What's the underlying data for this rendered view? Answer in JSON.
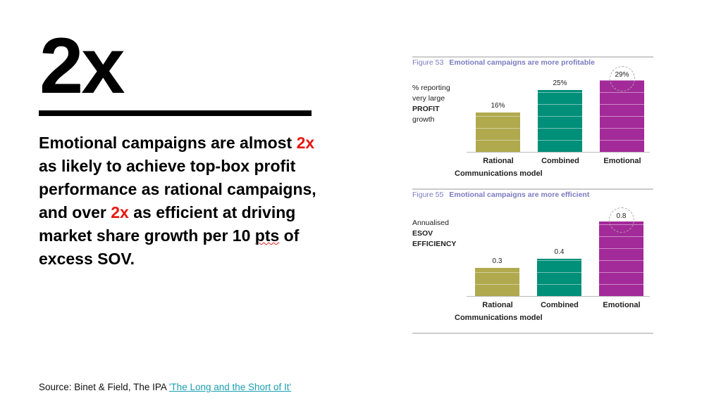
{
  "headline": "2x",
  "paragraph": {
    "p1": "Emotional campaigns are almost ",
    "r1": "2x",
    "p2": " as likely to achieve top-box profit performance as rational campaigns, and over ",
    "r2": "2x",
    "p3": " as efficient at driving market share growth per 10 ",
    "p4": "pts",
    "p5": " of excess SOV."
  },
  "source": {
    "text": "Source: Binet & Field, The IPA ",
    "link": "'The Long and the Short of It'"
  },
  "colors": {
    "rational": "#b0a94e",
    "combined": "#008f78",
    "emotional": "#a32a99",
    "accent": "#e8170f"
  },
  "chart_data": [
    {
      "type": "bar",
      "figure": "Figure 53",
      "title": "Emotional campaigns are more profitable",
      "ylabel": [
        "% reporting",
        "very large",
        "PROFIT",
        "growth"
      ],
      "xlabel": "Communications model",
      "categories": [
        "Rational",
        "Combined",
        "Emotional"
      ],
      "values": [
        16,
        25,
        29
      ],
      "value_labels": [
        "16%",
        "25%",
        "29%"
      ],
      "ylim": [
        0,
        29
      ]
    },
    {
      "type": "bar",
      "figure": "Figure 55",
      "title": "Emotional campaigns are more efficient",
      "ylabel": [
        "Annualised",
        "ESOV",
        "EFFICIENCY"
      ],
      "xlabel": "Communications model",
      "categories": [
        "Rational",
        "Combined",
        "Emotional"
      ],
      "values": [
        0.3,
        0.4,
        0.8
      ],
      "value_labels": [
        "0.3",
        "0.4",
        "0.8"
      ],
      "ylim": [
        0,
        0.8
      ]
    }
  ]
}
